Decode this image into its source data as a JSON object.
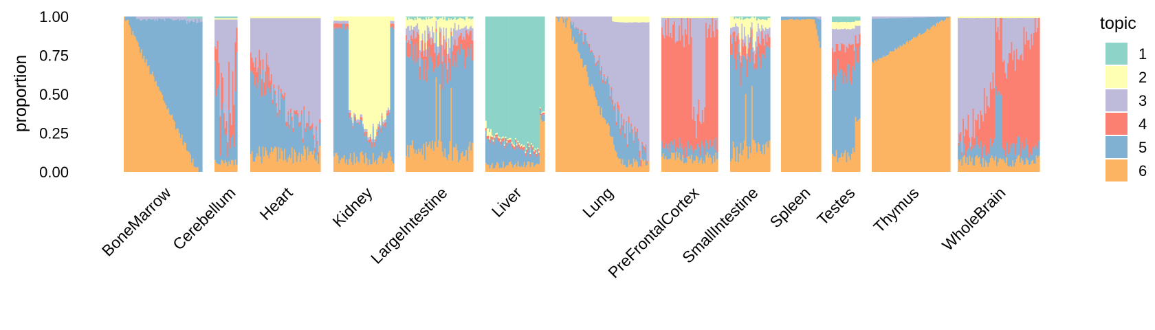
{
  "chart_data": {
    "type": "bar",
    "subtype": "stacked-faceted-structure-plot",
    "ylabel": "proportion",
    "xlabel": "",
    "ylim": [
      0,
      1
    ],
    "y_ticks": [
      "0.00",
      "0.25",
      "0.50",
      "0.75",
      "1.00"
    ],
    "grid": false,
    "legend": {
      "title": "topic",
      "placement": "right",
      "entries": [
        {
          "label": "1",
          "color": "#8DD3C7"
        },
        {
          "label": "2",
          "color": "#FFFFB3"
        },
        {
          "label": "3",
          "color": "#BEBADA"
        },
        {
          "label": "4",
          "color": "#FB8072"
        },
        {
          "label": "5",
          "color": "#80B1D3"
        },
        {
          "label": "6",
          "color": "#FDB462"
        }
      ]
    },
    "stack_order_bottom_to_top": [
      "6",
      "5",
      "4",
      "3",
      "2",
      "1"
    ],
    "series_unit": "mean proportion per tissue (approximate)",
    "categories": [
      "BoneMarrow",
      "Cerebellum",
      "Heart",
      "Kidney",
      "LargeIntestine",
      "Liver",
      "Lung",
      "PreFrontalCortex",
      "SmallIntestine",
      "Spleen",
      "Testes",
      "Thymus",
      "WholeBrain"
    ],
    "series": [
      {
        "name": "1",
        "values": [
          0.0,
          0.01,
          0.0,
          0.0,
          0.05,
          0.84,
          0.0,
          0.0,
          0.01,
          0.0,
          0.03,
          0.0,
          0.0
        ]
      },
      {
        "name": "2",
        "values": [
          0.0,
          0.01,
          0.01,
          0.59,
          0.12,
          0.03,
          0.01,
          0.01,
          0.03,
          0.0,
          0.04,
          0.0,
          0.01
        ]
      },
      {
        "name": "3",
        "values": [
          0.01,
          0.3,
          0.46,
          0.01,
          0.06,
          0.0,
          0.21,
          0.1,
          0.07,
          0.01,
          0.12,
          0.01,
          0.42
        ]
      },
      {
        "name": "4",
        "values": [
          0.0,
          0.25,
          0.05,
          0.03,
          0.09,
          0.02,
          0.02,
          0.7,
          0.08,
          0.01,
          0.13,
          0.0,
          0.32
        ]
      },
      {
        "name": "5",
        "values": [
          0.57,
          0.39,
          0.36,
          0.27,
          0.54,
          0.03,
          0.23,
          0.1,
          0.7,
          0.02,
          0.55,
          0.14,
          0.17
        ]
      },
      {
        "name": "6",
        "values": [
          0.42,
          0.04,
          0.12,
          0.1,
          0.14,
          0.08,
          0.53,
          0.09,
          0.11,
          0.96,
          0.13,
          0.85,
          0.08
        ]
      }
    ],
    "facet_profiles": {
      "BoneMarrow": {
        "bars": 64,
        "profile": "declining-six"
      },
      "Cerebellum": {
        "bars": 18,
        "profile": "mixed"
      },
      "Heart": {
        "bars": 58,
        "profile": "heart"
      },
      "Kidney": {
        "bars": 48,
        "profile": "kidney"
      },
      "LargeIntestine": {
        "bars": 54,
        "profile": "intestine"
      },
      "Liver": {
        "bars": 48,
        "profile": "liver"
      },
      "Lung": {
        "bars": 76,
        "profile": "declining-six-lung"
      },
      "PreFrontalCortex": {
        "bars": 46,
        "profile": "pfc"
      },
      "SmallIntestine": {
        "bars": 32,
        "profile": "intestine"
      },
      "Spleen": {
        "bars": 32,
        "profile": "spleen"
      },
      "Testes": {
        "bars": 22,
        "profile": "testes"
      },
      "Thymus": {
        "bars": 76,
        "profile": "thymus"
      },
      "WholeBrain": {
        "bars": 66,
        "profile": "brain"
      }
    }
  }
}
